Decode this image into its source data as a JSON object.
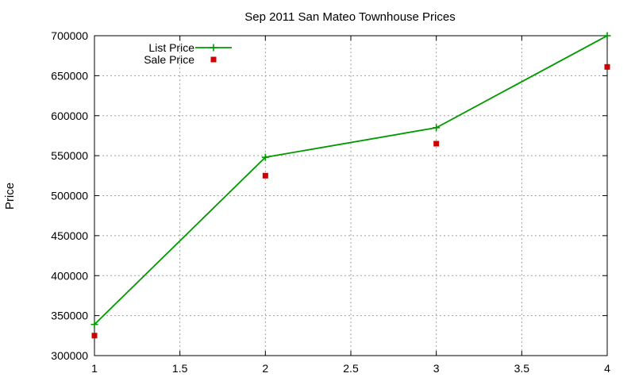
{
  "chart_data": {
    "type": "line",
    "title": "Sep 2011 San Mateo Townhouse Prices",
    "xlabel": "",
    "ylabel": "Price",
    "xlim": [
      1,
      4
    ],
    "ylim": [
      300000,
      700000
    ],
    "xticks": [
      1,
      1.5,
      2,
      2.5,
      3,
      3.5,
      4
    ],
    "xtick_labels": [
      "1",
      "1.5",
      "2",
      "2.5",
      "3",
      "3.5",
      "4"
    ],
    "yticks": [
      300000,
      350000,
      400000,
      450000,
      500000,
      550000,
      600000,
      650000,
      700000
    ],
    "ytick_labels": [
      "300000",
      "350000",
      "400000",
      "450000",
      "500000",
      "550000",
      "600000",
      "650000",
      "700000"
    ],
    "grid": true,
    "legend_position": "top-left",
    "series": [
      {
        "name": "List Price",
        "style": "linespoints",
        "color": "#009900",
        "x": [
          1,
          2,
          3,
          4
        ],
        "y": [
          339000,
          548000,
          585000,
          700000
        ]
      },
      {
        "name": "Sale Price",
        "style": "points",
        "color": "#cc0000",
        "x": [
          1,
          2,
          3,
          4
        ],
        "y": [
          325000,
          525000,
          565000,
          661000
        ]
      }
    ]
  }
}
